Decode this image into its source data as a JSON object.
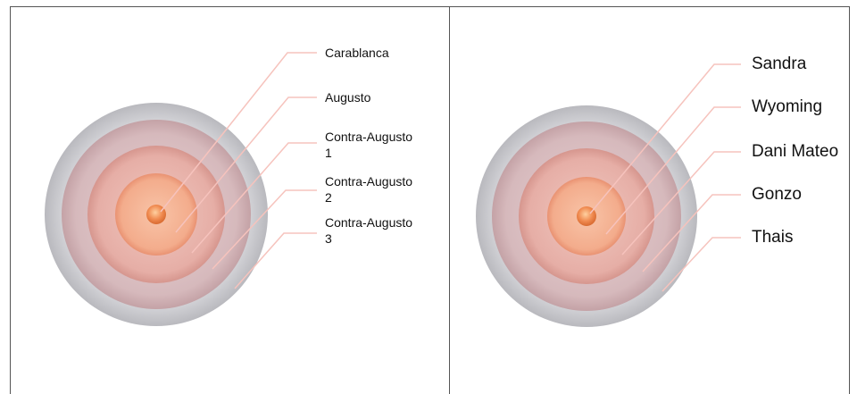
{
  "colors": {
    "ring_outer": "#c8c8cc",
    "ring_core": "#f08a50",
    "leader": "#f6c3bd",
    "border": "#555555"
  },
  "left_diagram": {
    "labels": [
      "Carablanca",
      "Augusto",
      "Contra-Augusto\n1",
      "Contra-Augusto\n2",
      "Contra-Augusto\n3"
    ]
  },
  "right_diagram": {
    "labels": [
      "Sandra",
      "Wyoming",
      "Dani Mateo",
      "Gonzo",
      "Thais"
    ]
  }
}
